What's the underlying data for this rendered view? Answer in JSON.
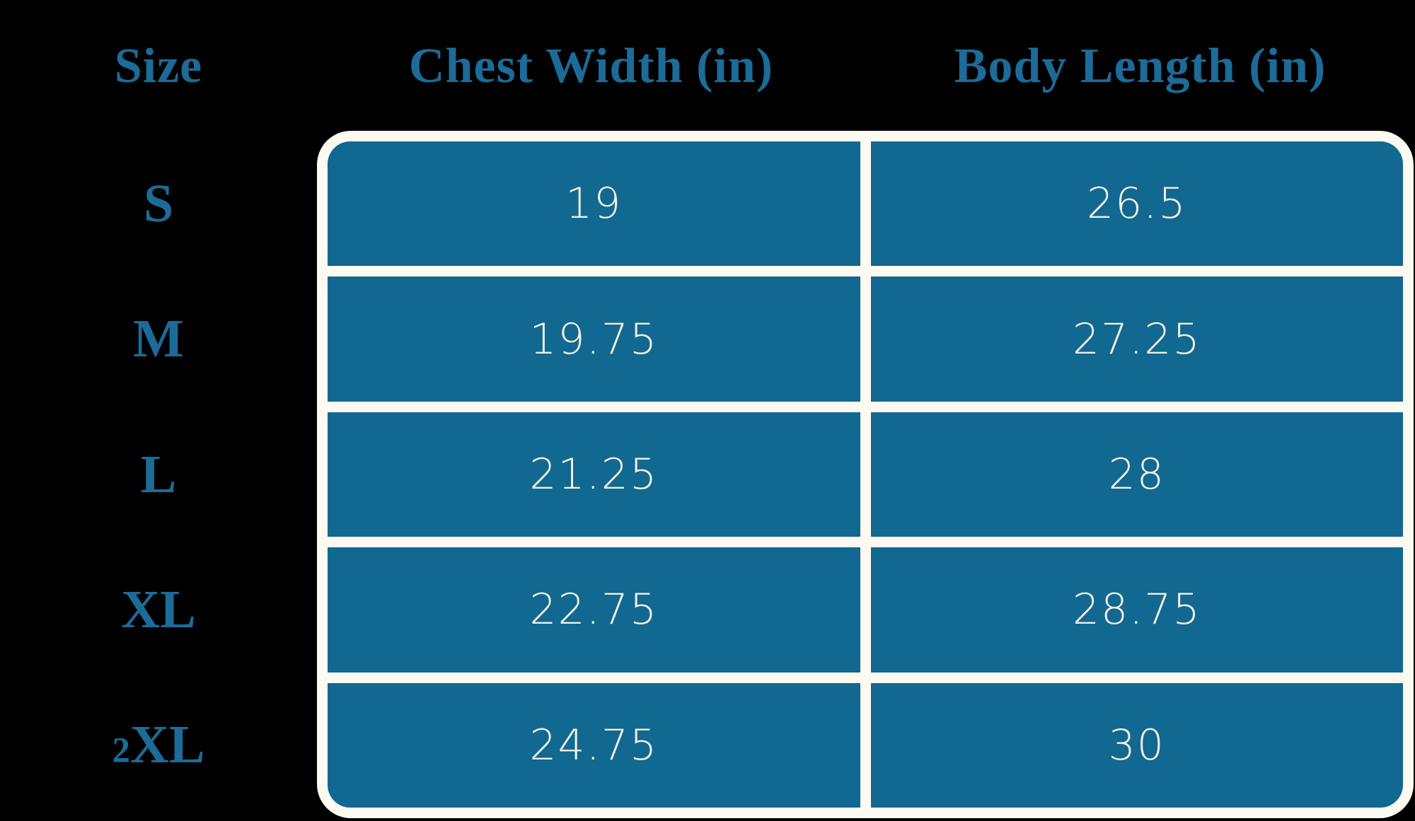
{
  "palette": {
    "background": "#000000",
    "cell_teal": "#116890",
    "header_text_teal": "#1C6B99",
    "table_border_cream": "#FDFAF2",
    "cell_text": "#F2EFE6"
  },
  "headers": {
    "size": "Size",
    "chest_width": "Chest Width (in)",
    "body_length": "Body Length (in)"
  },
  "table": {
    "rows": [
      {
        "size": "S",
        "chest_width": "19",
        "body_length": "26.5"
      },
      {
        "size": "M",
        "chest_width": "19.75",
        "body_length": "27.25"
      },
      {
        "size": "L",
        "chest_width": "21.25",
        "body_length": "28"
      },
      {
        "size": "XL",
        "chest_width": "22.75",
        "body_length": "28.75"
      },
      {
        "size": "2XL",
        "chest_width": "24.75",
        "body_length": "30"
      }
    ]
  },
  "chart_data": {
    "type": "table",
    "title": "",
    "columns": [
      "Size",
      "Chest Width (in)",
      "Body Length (in)"
    ],
    "rows": [
      [
        "S",
        19,
        26.5
      ],
      [
        "M",
        19.75,
        27.25
      ],
      [
        "L",
        21.25,
        28
      ],
      [
        "XL",
        22.75,
        28.75
      ],
      [
        "2XL",
        24.75,
        30
      ]
    ]
  }
}
